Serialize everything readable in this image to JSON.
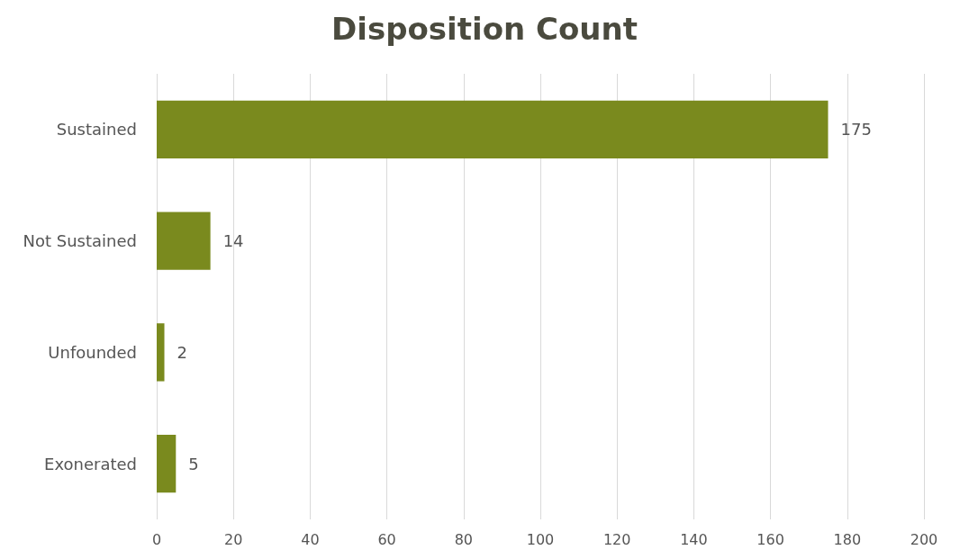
{
  "chart_data": {
    "type": "bar",
    "title": "Disposition Count",
    "orientation": "horizontal",
    "categories": [
      "Sustained",
      "Not Sustained",
      "Unfounded",
      "Exonerated"
    ],
    "values": [
      175,
      14,
      2,
      5
    ],
    "color": "#7a8a1e",
    "xlim": [
      0,
      200
    ],
    "xticks": [
      0,
      20,
      40,
      60,
      80,
      100,
      120,
      140,
      160,
      180,
      200
    ],
    "grid": "x",
    "data_labels": true
  }
}
